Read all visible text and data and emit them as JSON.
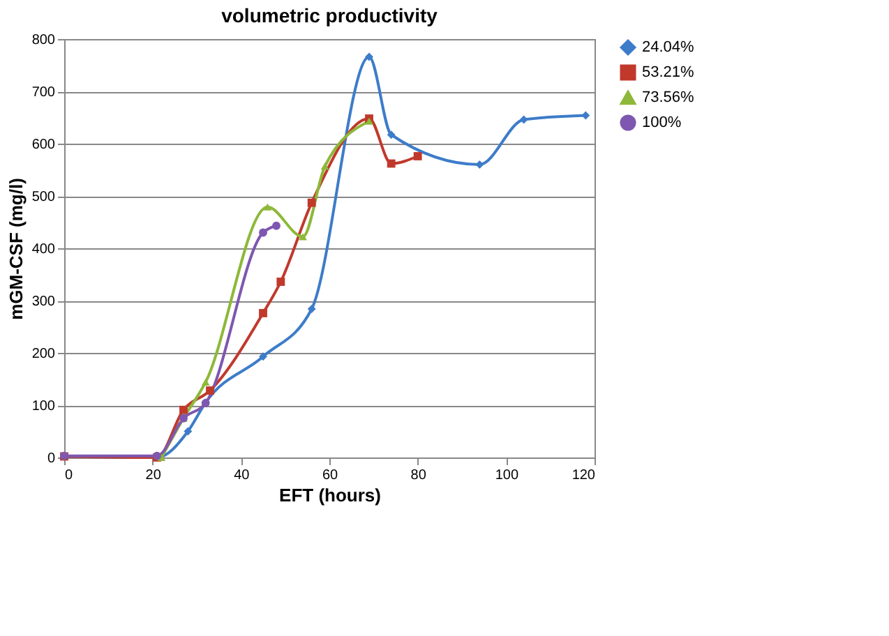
{
  "chart_data": {
    "type": "line",
    "title": "volumetric productivity",
    "xlabel": "EFT (hours)",
    "ylabel": "mGM-CSF (mg/l)",
    "xlim": [
      0,
      120
    ],
    "xticks": [
      0,
      20,
      40,
      60,
      80,
      100,
      120
    ],
    "ylim": [
      0,
      800
    ],
    "yticks": [
      0,
      100,
      200,
      300,
      400,
      500,
      600,
      700,
      800
    ],
    "grid": "y",
    "legend": "right",
    "line_style": "solid",
    "series": [
      {
        "name": "24.04%",
        "color": "#3d7cc9",
        "marker": "diamond",
        "x": [
          0,
          21,
          28,
          32,
          45,
          56,
          69,
          74,
          94,
          104,
          118
        ],
        "values": [
          2,
          0,
          50,
          105,
          193,
          284,
          766,
          617,
          560,
          646,
          654
        ]
      },
      {
        "name": "53.21%",
        "color": "#c0392b",
        "marker": "square",
        "x": [
          0,
          21,
          27,
          33,
          45,
          49,
          56,
          69,
          74,
          80
        ],
        "values": [
          2,
          0,
          91,
          128,
          276,
          336,
          487,
          648,
          562,
          576
        ]
      },
      {
        "name": "73.56%",
        "color": "#8db83a",
        "marker": "triangle",
        "x": [
          22,
          27,
          32,
          46,
          54,
          59,
          69
        ],
        "values": [
          0,
          75,
          144,
          479,
          422,
          557,
          643
        ]
      },
      {
        "name": "100%",
        "color": "#7e57b0",
        "marker": "circle",
        "x": [
          0,
          21,
          27,
          32,
          45,
          48
        ],
        "values": [
          3,
          3,
          75,
          104,
          430,
          443
        ]
      }
    ]
  }
}
